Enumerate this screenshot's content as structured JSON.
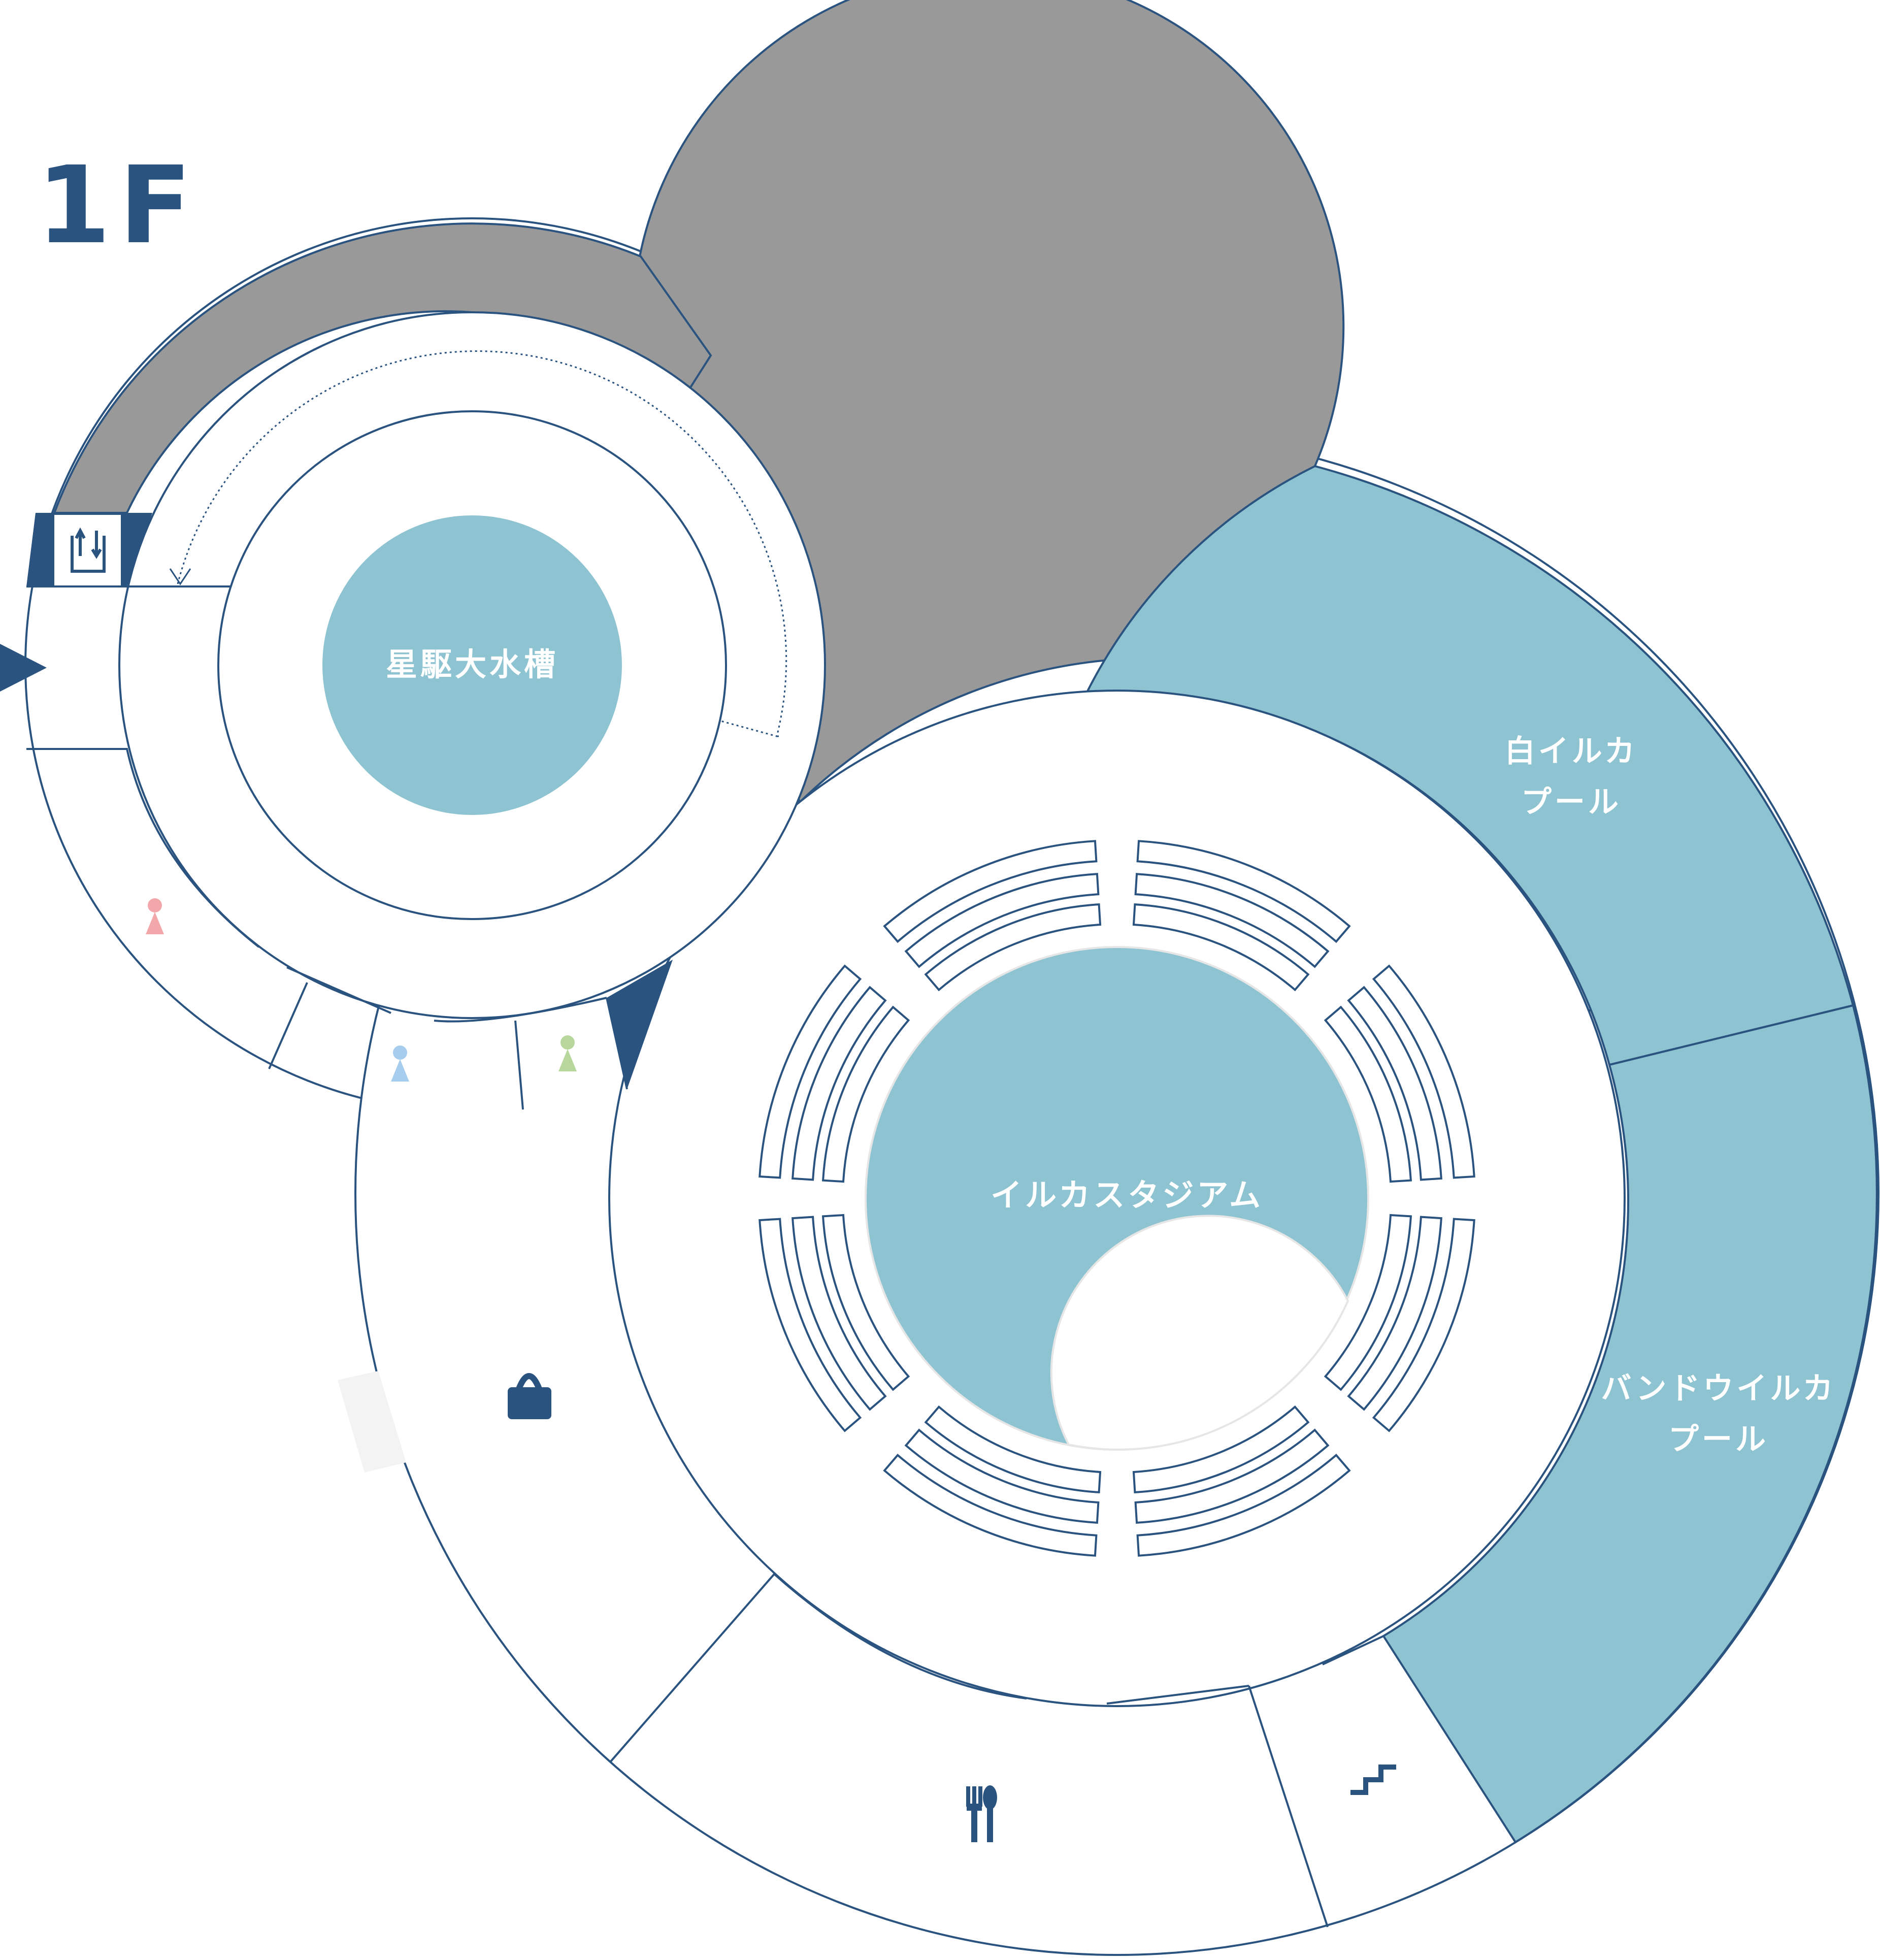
{
  "floor": "1F",
  "areas": {
    "star_tank": "星駆大水槽",
    "dolphin_stadium": "イルカスタジアム",
    "beluga_pool": [
      "白イルカ",
      "プール"
    ],
    "bottlenose_pool": [
      "バンドウイルカ",
      "プール"
    ]
  },
  "icons": {
    "restroom_women": "restroom-women-icon",
    "restroom_men": "restroom-men-icon",
    "restroom_multi": "restroom-multipurpose-icon",
    "shop": "shop-bag-icon",
    "restaurant": "restaurant-icon",
    "stairs": "stairs-icon",
    "elevator": "elevator-icon",
    "entrance": "entrance-arrow-icon"
  },
  "colors": {
    "accent": "#2a5380",
    "water": "#8ec3d1",
    "closed": "#999999",
    "outline": "#2a5380",
    "women": "#f2a7ab",
    "men": "#a6cdee",
    "multi": "#b7d79c",
    "light_gray": "#f3f3f3"
  }
}
